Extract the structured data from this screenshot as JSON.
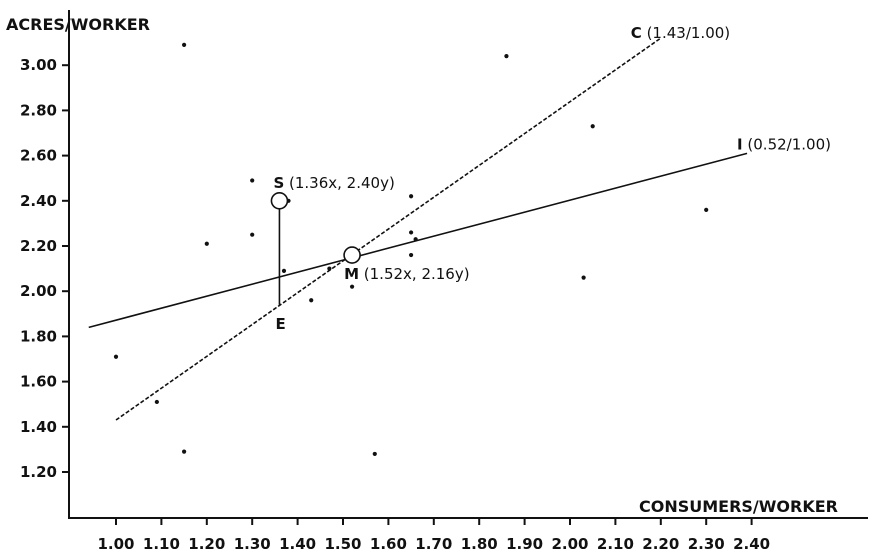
{
  "chart_data": {
    "type": "scatter",
    "title": "",
    "xlabel": "CONSUMERS/WORKER",
    "ylabel": "ACRES/WORKER",
    "xlim": [
      0.93,
      2.45
    ],
    "ylim": [
      1.1,
      3.2
    ],
    "xticks": [
      1.0,
      1.1,
      1.2,
      1.3,
      1.4,
      1.5,
      1.6,
      1.7,
      1.8,
      1.9,
      2.0,
      2.1,
      2.2,
      2.3,
      2.4
    ],
    "xtick_labels": [
      "1.00",
      "1.10",
      "1.20",
      "1.30",
      "1.40",
      "1.50",
      "1.60",
      "1.70",
      "1.80",
      "1.90",
      "2.00",
      "2.10",
      "2.20",
      "2.30",
      "2.40"
    ],
    "yticks": [
      1.2,
      1.4,
      1.6,
      1.8,
      2.0,
      2.2,
      2.4,
      2.6,
      2.8,
      3.0
    ],
    "ytick_labels": [
      "1.20",
      "1.40",
      "1.60",
      "1.80",
      "2.00",
      "2.20",
      "2.40",
      "2.60",
      "2.80",
      "3.00"
    ],
    "grid": false,
    "points": [
      {
        "x": 1.0,
        "y": 1.71
      },
      {
        "x": 1.09,
        "y": 1.51
      },
      {
        "x": 1.15,
        "y": 1.29
      },
      {
        "x": 1.15,
        "y": 3.09
      },
      {
        "x": 1.2,
        "y": 2.21
      },
      {
        "x": 1.3,
        "y": 2.49
      },
      {
        "x": 1.3,
        "y": 2.25
      },
      {
        "x": 1.36,
        "y": 2.4
      },
      {
        "x": 1.37,
        "y": 2.09
      },
      {
        "x": 1.38,
        "y": 2.4
      },
      {
        "x": 1.43,
        "y": 1.96
      },
      {
        "x": 1.47,
        "y": 2.1
      },
      {
        "x": 1.52,
        "y": 2.02
      },
      {
        "x": 1.57,
        "y": 1.28
      },
      {
        "x": 1.65,
        "y": 2.42
      },
      {
        "x": 1.65,
        "y": 2.26
      },
      {
        "x": 1.66,
        "y": 2.23
      },
      {
        "x": 1.65,
        "y": 2.16
      },
      {
        "x": 1.86,
        "y": 3.04
      },
      {
        "x": 2.03,
        "y": 2.06
      },
      {
        "x": 2.05,
        "y": 2.73
      },
      {
        "x": 2.3,
        "y": 2.36
      }
    ],
    "lines": [
      {
        "label": "C",
        "value": "(1.43/1.00)",
        "style": "dashed",
        "from": [
          1.0,
          1.43
        ],
        "to": [
          2.2,
          3.12
        ]
      },
      {
        "label": "I",
        "value": "(0.52/1.00)",
        "style": "solid",
        "from": [
          0.94,
          1.84
        ],
        "to": [
          2.39,
          2.61
        ]
      }
    ],
    "highlights": [
      {
        "label": "S",
        "value": "(1.36x, 2.40y)",
        "x": 1.36,
        "y": 2.4
      },
      {
        "label": "M",
        "value": "(1.52x, 2.16y)",
        "x": 1.52,
        "y": 2.16
      }
    ],
    "annotations": [
      {
        "label": "E",
        "x": 1.36,
        "y": 1.94
      }
    ],
    "residual": {
      "x": 1.36,
      "y_from": 2.4,
      "y_to": 1.94
    }
  }
}
